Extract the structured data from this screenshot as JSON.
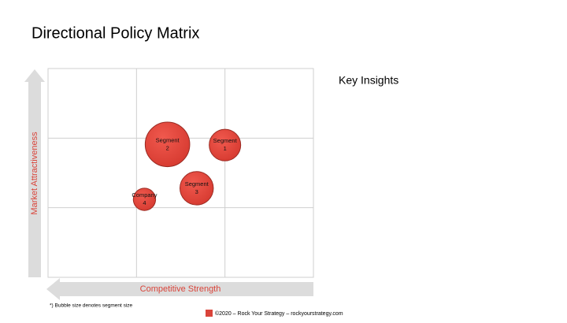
{
  "title": "Directional Policy Matrix",
  "side_heading": "Key Insights",
  "footnote": "*) Bubble size denotes segment size",
  "footer": "©2020 – Rock Your Strategy – rockyourstrategy.com",
  "chart_data": {
    "type": "bubble",
    "x_label": "Competitive Strength",
    "y_label": "Market Attractiveness",
    "xlim": [
      0,
      3
    ],
    "ylim": [
      0,
      3
    ],
    "color": "#e2463b",
    "labels": [
      [
        "Segment",
        "1"
      ],
      [
        "Segment",
        "2"
      ],
      [
        "Segment",
        "3"
      ],
      [
        "Company",
        "4"
      ]
    ],
    "x": [
      2.0,
      1.35,
      1.68,
      1.09
    ],
    "values": [
      1.9,
      1.91,
      1.28,
      1.12
    ],
    "sizes": [
      4,
      8,
      4.5,
      2
    ]
  }
}
